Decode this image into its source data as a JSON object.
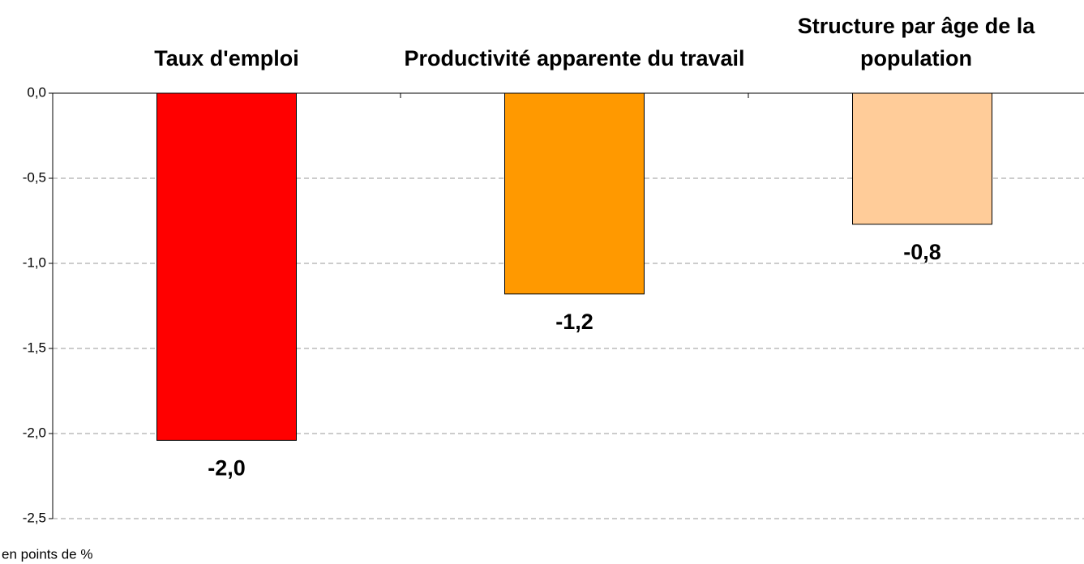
{
  "chart_data": {
    "type": "bar",
    "categories": [
      "Taux d'emploi",
      "Productivité apparente du travail",
      "Structure par âge de la population"
    ],
    "values": [
      -2.04,
      -1.18,
      -0.77
    ],
    "value_labels": [
      "-2,0",
      "-1,2",
      "-0,8"
    ],
    "colors": [
      "#ff0000",
      "#ff9900",
      "#ffcc99"
    ],
    "ylim": [
      -2.5,
      0
    ],
    "yticks": [
      {
        "value": 0,
        "label": "0,0"
      },
      {
        "value": -0.5,
        "label": "-0,5"
      },
      {
        "value": -1,
        "label": "-1,0"
      },
      {
        "value": -1.5,
        "label": "-1,5"
      },
      {
        "value": -2,
        "label": "-2,0"
      },
      {
        "value": -2.5,
        "label": "-2,5"
      }
    ],
    "grid": true,
    "note": "en points de %"
  }
}
